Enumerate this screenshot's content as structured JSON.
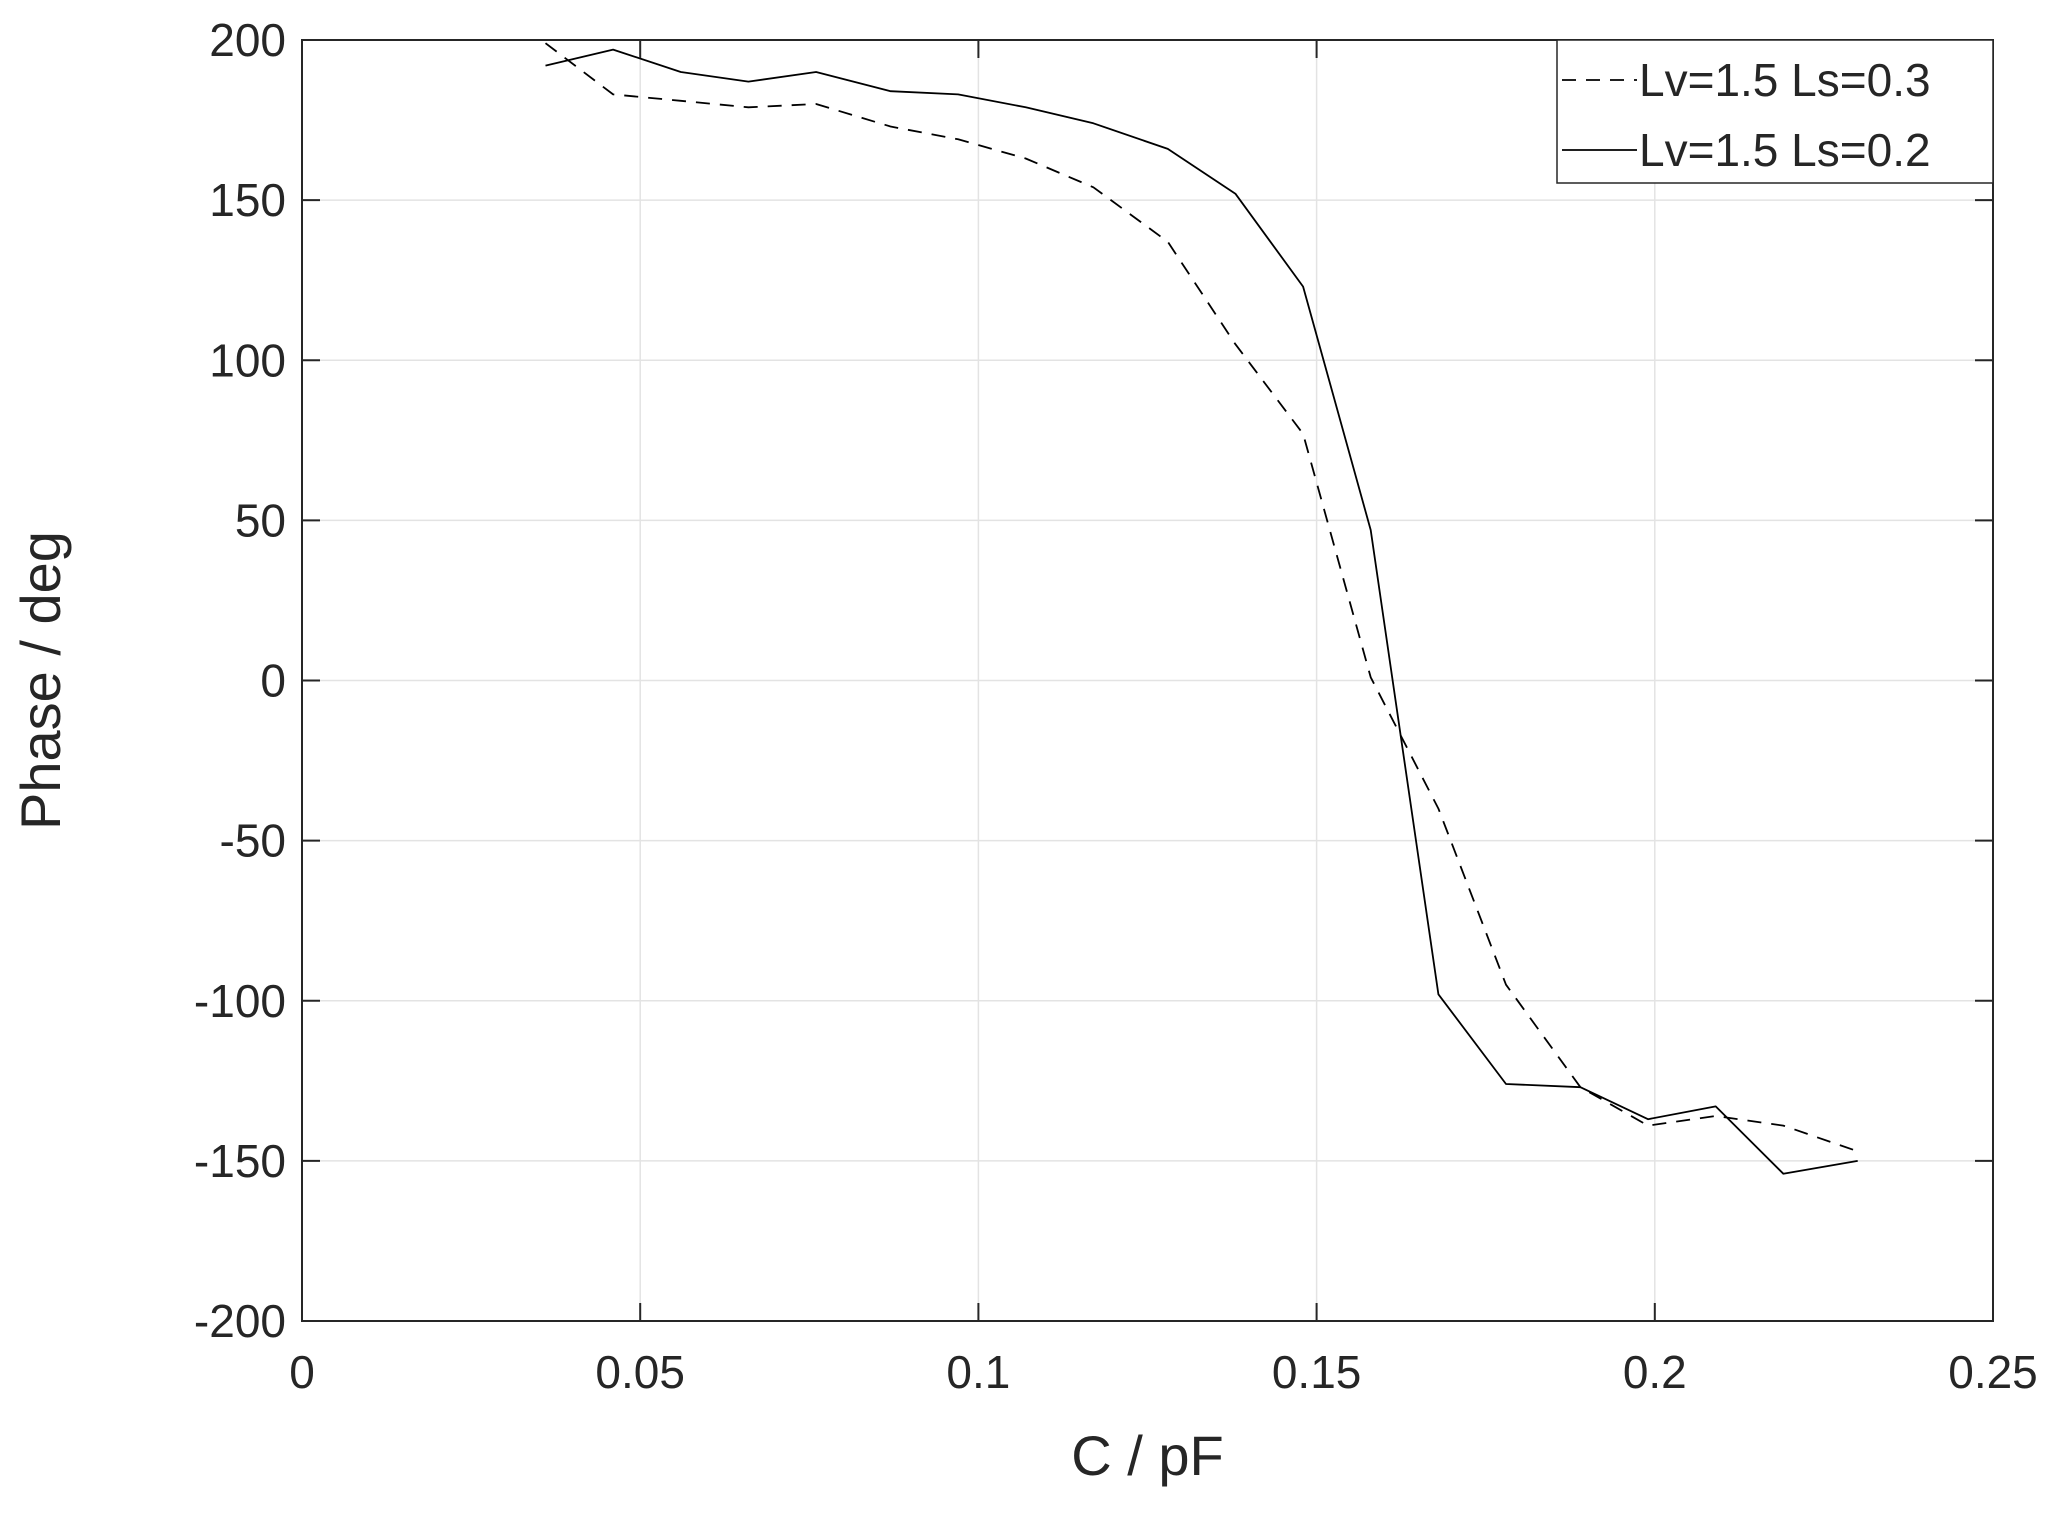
{
  "chart_data": {
    "type": "line",
    "title": "",
    "xlabel": "C / pF",
    "ylabel": "Phase / deg",
    "xlim": [
      0,
      0.25
    ],
    "ylim": [
      -200,
      200
    ],
    "xticks": [
      0,
      0.05,
      0.1,
      0.15,
      0.2,
      0.25
    ],
    "xtick_labels": [
      "0",
      "0.05",
      "0.1",
      "0.15",
      "0.2",
      "0.25"
    ],
    "yticks": [
      200,
      150,
      100,
      50,
      0,
      -50,
      -100,
      -150,
      -200
    ],
    "ytick_labels": [
      "200",
      "150",
      "100",
      "50",
      "0",
      "-50",
      "-100",
      "-150",
      "-200"
    ],
    "grid": true,
    "legend_position": "top-right",
    "series": [
      {
        "name": "Lv=1.5 Ls=0.3",
        "line_style": "dashed",
        "color": "#000000",
        "x": [
          0.036,
          0.046,
          0.056,
          0.066,
          0.076,
          0.087,
          0.097,
          0.107,
          0.117,
          0.128,
          0.138,
          0.148,
          0.158,
          0.168,
          0.178,
          0.189,
          0.199,
          0.209,
          0.219,
          0.23
        ],
        "y": [
          199,
          183,
          181,
          179,
          180,
          173,
          169,
          163,
          154,
          137,
          105,
          77,
          1,
          -40,
          -95,
          -127,
          -139,
          -136,
          -139,
          -147
        ]
      },
      {
        "name": "Lv=1.5 Ls=0.2",
        "line_style": "solid",
        "color": "#000000",
        "x": [
          0.036,
          0.046,
          0.056,
          0.066,
          0.076,
          0.087,
          0.097,
          0.107,
          0.117,
          0.128,
          0.138,
          0.148,
          0.158,
          0.168,
          0.178,
          0.189,
          0.199,
          0.209,
          0.219,
          0.23
        ],
        "y": [
          192,
          197,
          190,
          187,
          190,
          184,
          183,
          179,
          174,
          166,
          152,
          123,
          47,
          -98,
          -126,
          -127,
          -137,
          -133,
          -154,
          -150
        ]
      }
    ]
  }
}
